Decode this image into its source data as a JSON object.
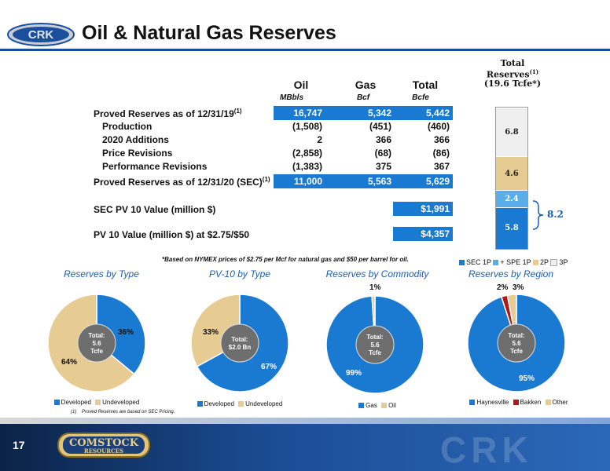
{
  "header": {
    "title": "Oil & Natural Gas Reserves",
    "logo_text": "CRK"
  },
  "table": {
    "columns": [
      {
        "label": "Oil",
        "unit": "MBbls"
      },
      {
        "label": "Gas",
        "unit": "Bcf"
      },
      {
        "label": "Total",
        "unit": "Bcfe"
      }
    ],
    "rows": [
      {
        "label": "Proved Reserves as of 12/31/19",
        "sup": "(1)",
        "values": [
          "16,747",
          "5,342",
          "5,442"
        ]
      },
      {
        "label": "Production",
        "values": [
          "(1,508)",
          "(451)",
          "(460)"
        ]
      },
      {
        "label": "2020 Additions",
        "values": [
          "2",
          "366",
          "366"
        ]
      },
      {
        "label": "Price Revisions",
        "values": [
          "(2,858)",
          "(68)",
          "(86)"
        ]
      },
      {
        "label": "Performance Revisions",
        "values": [
          "(1,383)",
          "375",
          "367"
        ]
      },
      {
        "label": "Proved Reserves as of 12/31/20 (SEC)",
        "sup": "(1)",
        "values": [
          "11,000",
          "5,563",
          "5,629"
        ]
      }
    ],
    "sec_pv10": {
      "label": "SEC PV 10 Value (million $)",
      "value": "$1,991"
    },
    "pv10": {
      "label": "PV 10 Value (million $) at $2.75/$50",
      "value": "$4,357"
    },
    "note": "*Based on NYMEX prices of $2.75 per Mcf for natural gas and $50 per barrel for oil."
  },
  "stack": {
    "title1": "Total",
    "title2": "Reserves",
    "title_sup": "(1)",
    "title3": "(19.6 Tcfe*)",
    "segments": [
      {
        "name": "SEC 1P",
        "value": 5.8,
        "label": "5.8",
        "color": "#1a7ad1"
      },
      {
        "name": "+ SPE 1P",
        "value": 2.4,
        "label": "2.4",
        "color": "#5aaee8"
      },
      {
        "name": "2P",
        "value": 4.6,
        "label": "4.6",
        "color": "#e6cc92"
      },
      {
        "name": "3P",
        "value": 6.8,
        "label": "6.8",
        "color": "#efefef"
      }
    ],
    "bracket_label": "8.2",
    "legend": [
      "SEC 1P",
      "+ SPE 1P",
      "2P",
      "3P"
    ]
  },
  "pies": [
    {
      "title": "Reserves by Type",
      "center": [
        "Total:",
        "5.6",
        "Tcfe"
      ],
      "slices": [
        {
          "name": "Developed",
          "value": 36,
          "label": "36%",
          "color": "#1a7ad1"
        },
        {
          "name": "Undeveloped",
          "value": 64,
          "label": "64%",
          "color": "#e6cc92"
        }
      ]
    },
    {
      "title": "PV-10 by Type",
      "center": [
        "Total:",
        "$2.0 Bn"
      ],
      "slices": [
        {
          "name": "Developed",
          "value": 67,
          "label": "67%",
          "color": "#1a7ad1"
        },
        {
          "name": "Undeveloped",
          "value": 33,
          "label": "33%",
          "color": "#e6cc92"
        }
      ]
    },
    {
      "title": "Reserves by Commodity",
      "center": [
        "Total:",
        "5.6",
        "Tcfe"
      ],
      "slices": [
        {
          "name": "Gas",
          "value": 99,
          "label": "99%",
          "color": "#1a7ad1"
        },
        {
          "name": "Oil",
          "value": 1,
          "label": "1%",
          "color": "#e6cc92"
        }
      ]
    },
    {
      "title": "Reserves by Region",
      "center": [
        "Total:",
        "5.6",
        "Tcfe"
      ],
      "slices": [
        {
          "name": "Haynesville",
          "value": 95,
          "label": "95%",
          "color": "#1a7ad1"
        },
        {
          "name": "Bakken",
          "value": 2,
          "label": "2%",
          "color": "#b01818"
        },
        {
          "name": "Other",
          "value": 3,
          "label": "3%",
          "color": "#e6cc92"
        }
      ]
    }
  ],
  "footnote": {
    "marker": "(1)",
    "text": "Proved Reserves are based on SEC Pricing."
  },
  "footer": {
    "page_number": "17",
    "company": "COMSTOCK",
    "company_sub": "RESOURCES",
    "watermark": "CRK"
  }
}
